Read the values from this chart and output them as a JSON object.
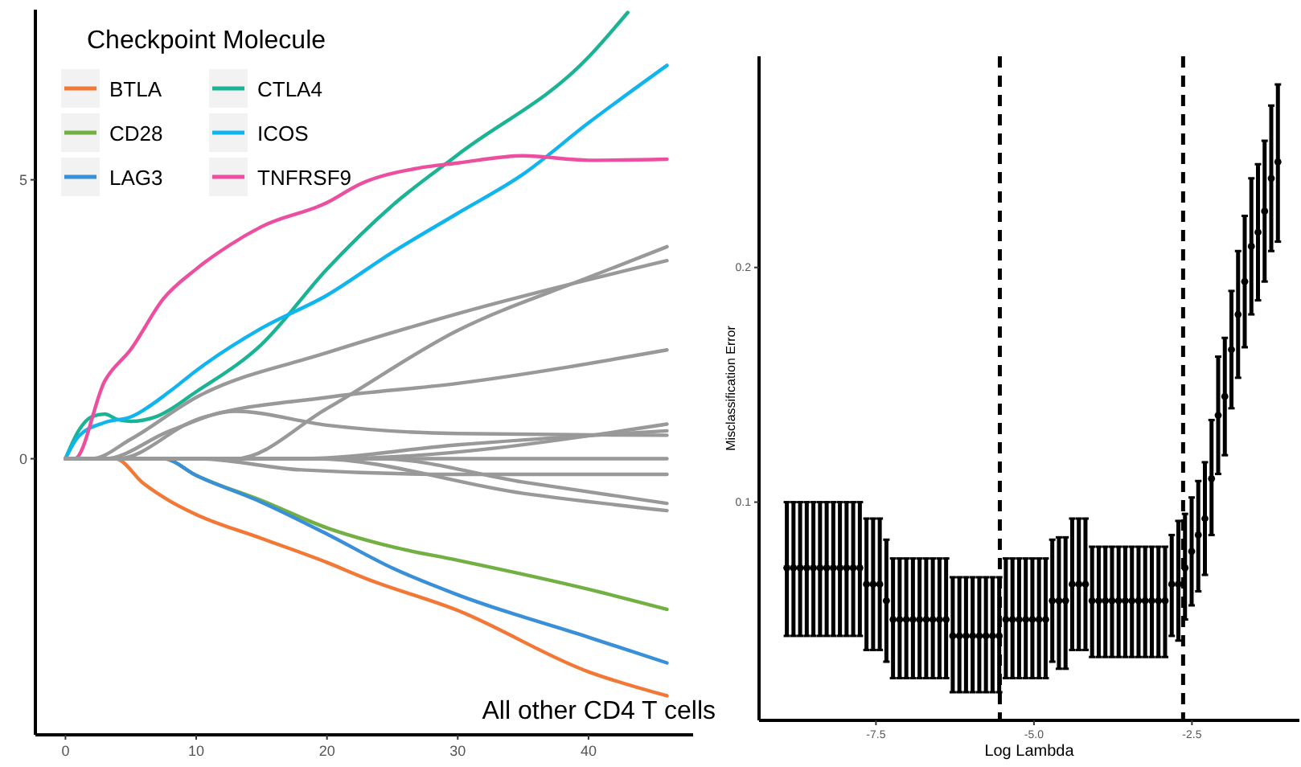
{
  "chart_data": [
    {
      "type": "line",
      "legend_title": "Checkpoint Molecule",
      "legend": "top left",
      "xlim": [
        -2.3,
        48
      ],
      "ylim": [
        -4.95,
        8.05
      ],
      "xticks": [
        0,
        10,
        20,
        30,
        40
      ],
      "yticks": [
        0,
        5
      ],
      "annotations": [
        "All other CD4 T cells"
      ],
      "series": [
        {
          "name": "BTLA",
          "color": "#f37735",
          "x": [
            0,
            3.8,
            6,
            8,
            10,
            15,
            20,
            23,
            30,
            40,
            46
          ],
          "values": [
            0,
            0,
            -0.45,
            -0.76,
            -1.0,
            -1.43,
            -1.86,
            -2.15,
            -2.72,
            -3.82,
            -4.25
          ]
        },
        {
          "name": "CD28",
          "color": "#72b043",
          "x": [
            0,
            7.5,
            10,
            15,
            20,
            25,
            30,
            40,
            46
          ],
          "values": [
            0,
            0,
            -0.3,
            -0.75,
            -1.24,
            -1.58,
            -1.82,
            -2.34,
            -2.7
          ]
        },
        {
          "name": "LAG3",
          "color": "#3a8fd9",
          "x": [
            0,
            7.5,
            10,
            15,
            20,
            25,
            30,
            40,
            46
          ],
          "values": [
            0,
            0,
            -0.3,
            -0.78,
            -1.35,
            -1.96,
            -2.44,
            -3.2,
            -3.66
          ]
        },
        {
          "name": "CTLA4",
          "color": "#1ab394",
          "x": [
            0,
            1,
            2,
            3,
            4,
            5,
            7,
            10,
            15,
            20,
            25,
            30,
            40,
            43
          ],
          "values": [
            0,
            0.5,
            0.75,
            0.8,
            0.7,
            0.67,
            0.76,
            1.2,
            2.05,
            3.4,
            4.54,
            5.45,
            7.2,
            8.0
          ]
        },
        {
          "name": "ICOS",
          "color": "#11b5ee",
          "x": [
            0,
            1,
            3,
            5,
            8,
            10,
            15,
            20,
            25,
            30,
            35,
            40,
            46
          ],
          "values": [
            0,
            0.4,
            0.65,
            0.75,
            1.21,
            1.58,
            2.34,
            2.93,
            3.7,
            4.4,
            5.1,
            6.02,
            7.05
          ]
        },
        {
          "name": "TNFRSF9",
          "color": "#ec4f9f",
          "x": [
            0,
            0.7,
            3,
            5,
            7.5,
            10,
            12.5,
            15,
            20,
            22.5,
            27,
            30,
            35,
            40,
            46
          ],
          "values": [
            0,
            0,
            1.39,
            1.96,
            2.87,
            3.4,
            3.82,
            4.16,
            4.59,
            4.92,
            5.21,
            5.3,
            5.43,
            5.35,
            5.37
          ]
        },
        {
          "color": "#999999",
          "x": [
            0,
            2,
            5,
            10,
            20,
            30,
            46
          ],
          "values": [
            0,
            0,
            0.35,
            1.1,
            1.9,
            2.6,
            3.55
          ]
        },
        {
          "color": "#999999",
          "x": [
            0,
            13,
            20,
            30,
            40,
            46
          ],
          "values": [
            0,
            0,
            0.9,
            2.3,
            3.25,
            3.8
          ]
        },
        {
          "color": "#999999",
          "x": [
            0,
            4,
            10,
            20,
            30,
            46
          ],
          "values": [
            0,
            0,
            0.7,
            1.1,
            1.35,
            1.95
          ]
        },
        {
          "color": "#999999",
          "x": [
            0,
            3,
            8,
            13,
            20,
            30,
            46
          ],
          "values": [
            0,
            0,
            0.5,
            0.85,
            0.6,
            0.45,
            0.42
          ]
        },
        {
          "color": "#999999",
          "x": [
            0,
            20,
            46
          ],
          "values": [
            0,
            0,
            0.62
          ]
        },
        {
          "color": "#999999",
          "x": [
            0,
            18,
            30,
            46
          ],
          "values": [
            0,
            0,
            0.25,
            0.5
          ]
        },
        {
          "color": "#999999",
          "x": [
            0,
            46
          ],
          "values": [
            0,
            0
          ]
        },
        {
          "color": "#999999",
          "x": [
            0,
            10,
            18,
            30,
            46
          ],
          "values": [
            0,
            0,
            -0.2,
            -0.28,
            -0.28
          ]
        },
        {
          "color": "#999999",
          "x": [
            0,
            19,
            35,
            46
          ],
          "values": [
            0,
            0,
            -0.62,
            -0.93
          ]
        },
        {
          "color": "#999999",
          "x": [
            0,
            24,
            35,
            46
          ],
          "values": [
            0,
            0,
            -0.42,
            -0.8
          ]
        }
      ]
    },
    {
      "type": "scatter",
      "xlabel": "Log Lambda",
      "ylabel": "Misclassification Error",
      "marker": "circle",
      "xlim": [
        -9.35,
        -0.8
      ],
      "ylim": [
        0.007,
        0.29
      ],
      "xticks": [
        -7.5,
        {
          "value": -5,
          "label": "-5.0"
        },
        -2.5
      ],
      "yticks": [
        0.1,
        0.2
      ],
      "ref_lines": [
        {
          "axis": "x",
          "value": -5.54,
          "line_style": "dashed",
          "color": "#000000"
        },
        {
          "axis": "x",
          "value": -2.64,
          "line_style": "dashed",
          "color": "#000000"
        }
      ],
      "series": [
        {
          "color": "#000000",
          "x": [
            -8.91,
            -8.805,
            -8.7,
            -8.595,
            -8.49,
            -8.385,
            -8.28,
            -8.175,
            -8.07,
            -7.965,
            -7.86,
            -7.755,
            -7.65,
            -7.545,
            -7.44,
            -7.335,
            -7.23,
            -7.125,
            -7.02,
            -6.915,
            -6.81,
            -6.705,
            -6.6,
            -6.495,
            -6.39,
            -6.285,
            -6.18,
            -6.075,
            -5.97,
            -5.865,
            -5.76,
            -5.655,
            -5.55,
            -5.445,
            -5.34,
            -5.235,
            -5.13,
            -5.025,
            -4.92,
            -4.815,
            -4.71,
            -4.605,
            -4.5,
            -4.395,
            -4.29,
            -4.185,
            -4.08,
            -3.975,
            -3.87,
            -3.765,
            -3.66,
            -3.555,
            -3.45,
            -3.345,
            -3.24,
            -3.135,
            -3.03,
            -2.925,
            -2.82,
            -2.715,
            -2.61,
            -2.505,
            -2.4,
            -2.295,
            -2.19,
            -2.085,
            -1.98,
            -1.875,
            -1.77,
            -1.665,
            -1.56,
            -1.455,
            -1.35,
            -1.245,
            -1.14
          ],
          "values": [
            0.072,
            0.072,
            0.072,
            0.072,
            0.072,
            0.072,
            0.072,
            0.072,
            0.072,
            0.072,
            0.072,
            0.072,
            0.065,
            0.065,
            0.065,
            0.058,
            0.05,
            0.05,
            0.05,
            0.05,
            0.05,
            0.05,
            0.05,
            0.05,
            0.05,
            0.043,
            0.043,
            0.043,
            0.043,
            0.043,
            0.043,
            0.043,
            0.043,
            0.05,
            0.05,
            0.05,
            0.05,
            0.05,
            0.05,
            0.05,
            0.058,
            0.058,
            0.058,
            0.065,
            0.065,
            0.065,
            0.058,
            0.058,
            0.058,
            0.058,
            0.058,
            0.058,
            0.058,
            0.058,
            0.058,
            0.058,
            0.058,
            0.058,
            0.065,
            0.065,
            0.072,
            0.079,
            0.086,
            0.093,
            0.11,
            0.137,
            0.145,
            0.165,
            0.18,
            0.194,
            0.209,
            0.215,
            0.224,
            0.238,
            0.245
          ],
          "errors": [
            [
              0.043,
              0.1
            ],
            [
              0.043,
              0.1
            ],
            [
              0.043,
              0.1
            ],
            [
              0.043,
              0.1
            ],
            [
              0.043,
              0.1
            ],
            [
              0.043,
              0.1
            ],
            [
              0.043,
              0.1
            ],
            [
              0.043,
              0.1
            ],
            [
              0.043,
              0.1
            ],
            [
              0.043,
              0.1
            ],
            [
              0.043,
              0.1
            ],
            [
              0.043,
              0.1
            ],
            [
              0.037,
              0.093
            ],
            [
              0.037,
              0.093
            ],
            [
              0.037,
              0.093
            ],
            [
              0.032,
              0.084
            ],
            [
              0.025,
              0.076
            ],
            [
              0.025,
              0.076
            ],
            [
              0.025,
              0.076
            ],
            [
              0.025,
              0.076
            ],
            [
              0.025,
              0.076
            ],
            [
              0.025,
              0.076
            ],
            [
              0.025,
              0.076
            ],
            [
              0.025,
              0.076
            ],
            [
              0.025,
              0.076
            ],
            [
              0.019,
              0.068
            ],
            [
              0.019,
              0.068
            ],
            [
              0.019,
              0.068
            ],
            [
              0.019,
              0.068
            ],
            [
              0.019,
              0.068
            ],
            [
              0.019,
              0.068
            ],
            [
              0.019,
              0.068
            ],
            [
              0.019,
              0.068
            ],
            [
              0.025,
              0.076
            ],
            [
              0.025,
              0.076
            ],
            [
              0.025,
              0.076
            ],
            [
              0.025,
              0.076
            ],
            [
              0.025,
              0.076
            ],
            [
              0.025,
              0.076
            ],
            [
              0.025,
              0.076
            ],
            [
              0.032,
              0.084
            ],
            [
              0.029,
              0.085
            ],
            [
              0.029,
              0.085
            ],
            [
              0.037,
              0.093
            ],
            [
              0.037,
              0.093
            ],
            [
              0.037,
              0.093
            ],
            [
              0.034,
              0.081
            ],
            [
              0.034,
              0.081
            ],
            [
              0.034,
              0.081
            ],
            [
              0.034,
              0.081
            ],
            [
              0.034,
              0.081
            ],
            [
              0.034,
              0.081
            ],
            [
              0.034,
              0.081
            ],
            [
              0.034,
              0.081
            ],
            [
              0.034,
              0.081
            ],
            [
              0.034,
              0.081
            ],
            [
              0.034,
              0.081
            ],
            [
              0.034,
              0.081
            ],
            [
              0.043,
              0.086
            ],
            [
              0.041,
              0.092
            ],
            [
              0.05,
              0.095
            ],
            [
              0.056,
              0.102
            ],
            [
              0.062,
              0.109
            ],
            [
              0.069,
              0.117
            ],
            [
              0.086,
              0.135
            ],
            [
              0.112,
              0.162
            ],
            [
              0.12,
              0.17
            ],
            [
              0.14,
              0.19
            ],
            [
              0.153,
              0.207
            ],
            [
              0.166,
              0.222
            ],
            [
              0.18,
              0.238
            ],
            [
              0.186,
              0.244
            ],
            [
              0.194,
              0.254
            ],
            [
              0.207,
              0.269
            ],
            [
              0.211,
              0.278
            ]
          ]
        }
      ]
    }
  ]
}
